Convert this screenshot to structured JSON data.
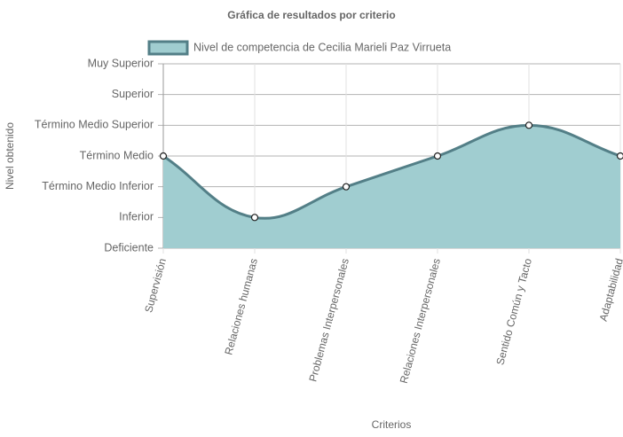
{
  "chart_data": {
    "type": "line",
    "title": "Gráfica de resultados por criterio",
    "x_label": "Criterios",
    "y_label": "Nivel obtenido",
    "categories": [
      "Supervisión",
      "Relaciones humanas",
      "Problemas Interpersonales",
      "Relaciones Interpersonales",
      "Sentido Común y Tacto",
      "Adaptabilidad"
    ],
    "series": [
      {
        "name": "Nivel de competencia de Cecilia Marieli Paz Virrueta",
        "color": "#537f87",
        "fill": "#a0cdd0",
        "values": [
          3,
          1,
          2,
          3,
          4,
          3
        ]
      }
    ],
    "ylim": [
      0,
      6
    ],
    "yticks": [
      {
        "value": 0,
        "label": "Deficiente"
      },
      {
        "value": 1,
        "label": "Inferior"
      },
      {
        "value": 2,
        "label": "Término Medio Inferior"
      },
      {
        "value": 3,
        "label": "Término Medio"
      },
      {
        "value": 4,
        "label": "Término Medio Superior"
      },
      {
        "value": 5,
        "label": "Superior"
      },
      {
        "value": 6,
        "label": "Muy Superior"
      }
    ],
    "grid": true,
    "legend": "top"
  }
}
